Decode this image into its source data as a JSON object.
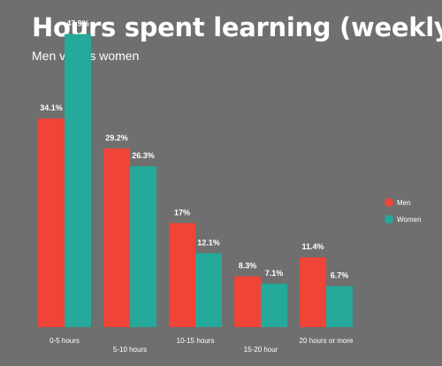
{
  "title": "Hours spent learning (weekly)",
  "subtitle": "Men versus women",
  "colors": {
    "background": "#6f6f6f",
    "men": "#f04438",
    "women": "#25a99a",
    "text": "#ffffff"
  },
  "chart_data": {
    "type": "bar",
    "title": "Hours spent learning (weekly)",
    "subtitle": "Men versus women",
    "categories": [
      "0-5 hours",
      "5-10 hours",
      "10-15 hours",
      "15-20 hour",
      "20 hours or more"
    ],
    "series": [
      {
        "name": "Men",
        "color": "#f04438",
        "values": [
          34.1,
          29.2,
          17,
          8.3,
          11.4
        ],
        "labels": [
          "34.1%",
          "29.2%",
          "17%",
          "8.3%",
          "11.4%"
        ]
      },
      {
        "name": "Women",
        "color": "#25a99a",
        "values": [
          47.9,
          26.3,
          12.1,
          7.1,
          6.7
        ],
        "labels": [
          "47.9%",
          "26.3%",
          "12.1%",
          "7.1%",
          "6.7%"
        ]
      }
    ],
    "ylim": [
      0,
      50
    ],
    "grid": false,
    "legend": "right",
    "xlabel": "",
    "ylabel": ""
  }
}
